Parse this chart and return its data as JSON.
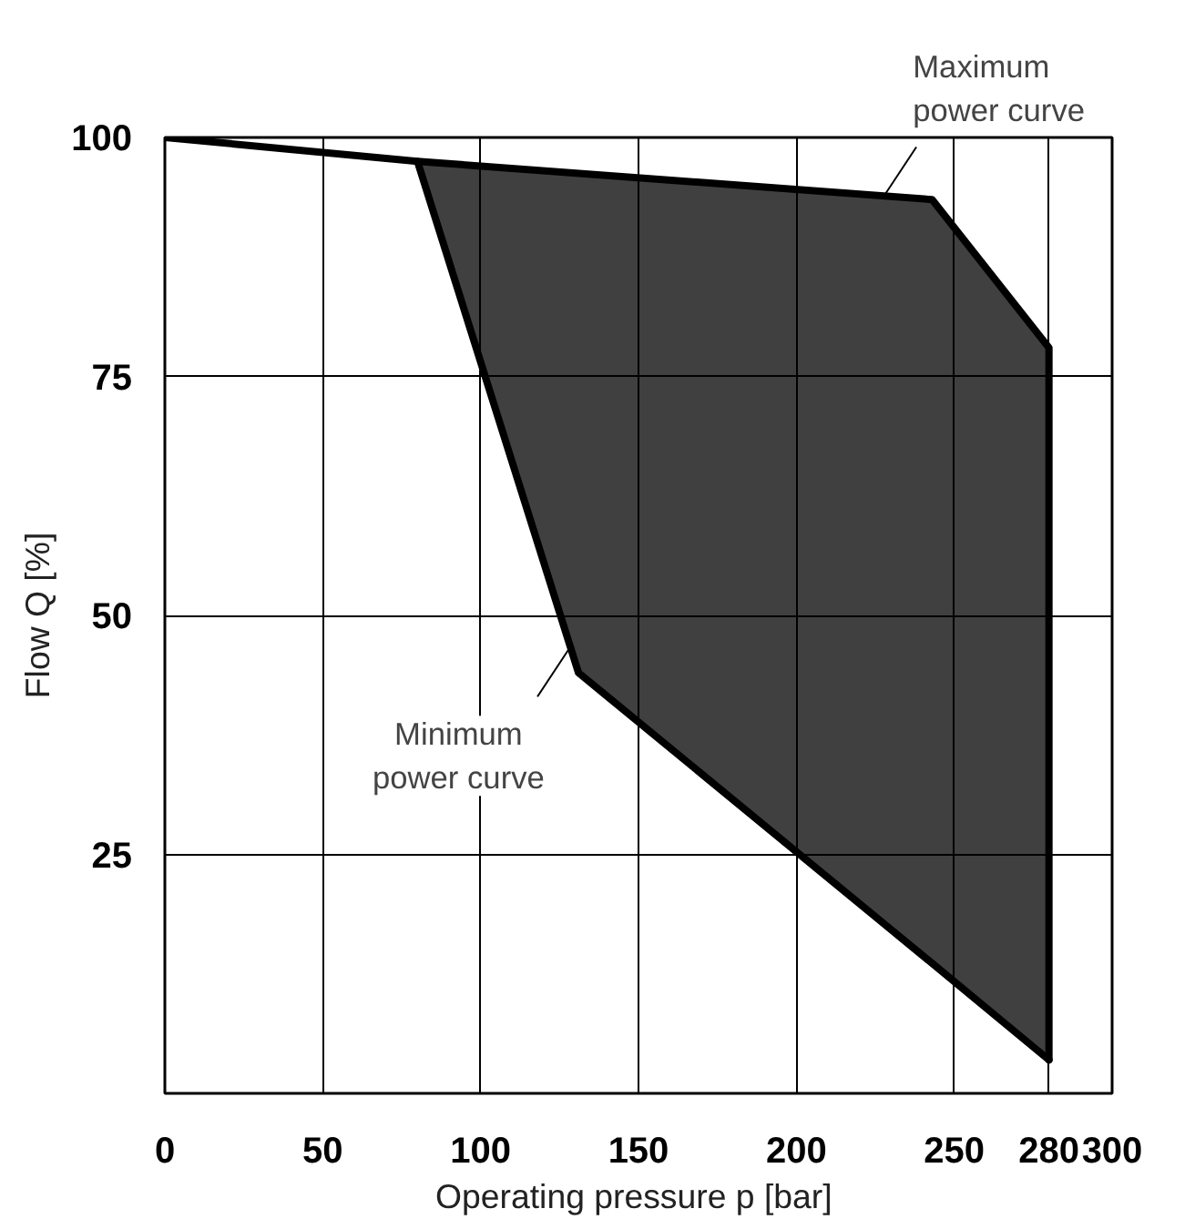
{
  "chart_data": {
    "type": "line",
    "xlabel": "Operating pressure  p [bar]",
    "ylabel": "Flow Q [%]",
    "xlim": [
      0,
      300
    ],
    "ylim": [
      0,
      100
    ],
    "xticks": [
      0,
      50,
      100,
      150,
      200,
      250,
      280,
      300
    ],
    "yticks": [
      25,
      50,
      75,
      100
    ],
    "grid": true,
    "line_style": "solid",
    "series": [
      {
        "type": "line",
        "color": "#000000",
        "x": [
          0,
          80,
          243,
          280,
          280
        ],
        "values": [
          100,
          97.5,
          93.5,
          78,
          3.5
        ]
      },
      {
        "type": "line",
        "color": "#000000",
        "x": [
          80,
          131,
          243,
          280
        ],
        "values": [
          97.5,
          44,
          13.6,
          3.5
        ],
        "lower": [
          97.5,
          44,
          13.6,
          3.5
        ],
        "upper": [
          97.5,
          96.3,
          93.5,
          78
        ]
      }
    ],
    "annotations": [
      {
        "text": "Maximum\npower curve",
        "x": 228,
        "y": 94
      },
      {
        "text": "Minimum\npower curve",
        "x": 128,
        "y": 46.5
      }
    ]
  }
}
